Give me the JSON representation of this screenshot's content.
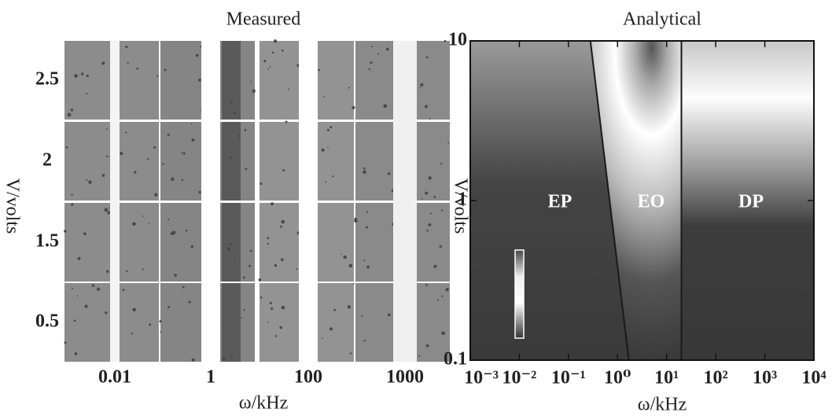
{
  "chart_data": [
    {
      "type": "image-grid",
      "title": "Measured",
      "x_label": "ω/kHz",
      "y_label": "V/volts",
      "categories": [
        "0.01",
        "1",
        "100",
        "1000"
      ],
      "rows": [
        "2.5",
        "2",
        "1.5",
        "0.5"
      ]
    },
    {
      "type": "contour",
      "title": "Analytical",
      "x_label": "ω/kHz",
      "y_label": "V/volts",
      "xlog": true,
      "ylog": true,
      "xlim": [
        0.001,
        10000
      ],
      "ylim": [
        0.1,
        10
      ],
      "xticks": [
        {
          "value": 0.001,
          "label": "10⁻³"
        },
        {
          "value": 0.01,
          "label": "10⁻²"
        },
        {
          "value": 0.1,
          "label": "10⁻¹"
        },
        {
          "value": 1,
          "label": "10⁰"
        },
        {
          "value": 10,
          "label": "10¹"
        },
        {
          "value": 100,
          "label": "10²"
        },
        {
          "value": 1000,
          "label": "10³"
        },
        {
          "value": 10000,
          "label": "10⁴"
        }
      ],
      "yticks": [
        0.1,
        1,
        10
      ],
      "annotations": [
        "EP",
        "EO",
        "DP"
      ],
      "boundaries": [
        {
          "x": [
            0.28,
            1.7
          ],
          "y": [
            10,
            0.1
          ]
        },
        {
          "x": [
            20,
            20
          ],
          "y": [
            10,
            0.1
          ]
        }
      ],
      "boundary_color": "#1a1a1a"
    }
  ]
}
